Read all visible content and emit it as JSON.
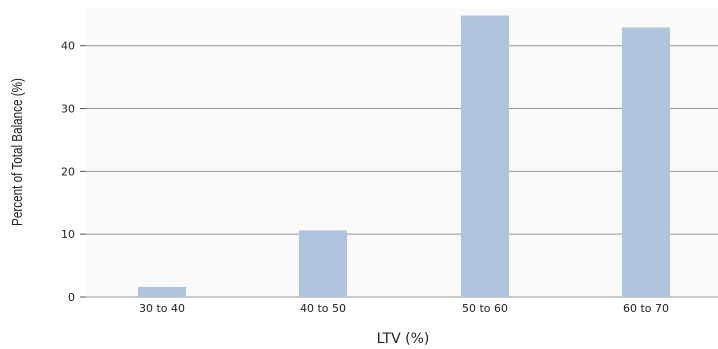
{
  "chart_data": {
    "type": "bar",
    "title": "",
    "xlabel": "LTV (%)",
    "ylabel": "Percent of Total Balance (%)",
    "categories": [
      "30 to 40",
      "40 to 50",
      "50 to 60",
      "60 to 70"
    ],
    "values": [
      1.6,
      10.6,
      44.8,
      42.9
    ],
    "ylim": [
      0,
      46
    ],
    "yticks": [
      0,
      10,
      20,
      30,
      40
    ],
    "grid": true,
    "bar_color": "#b0c4de",
    "grid_color": "#999999",
    "background_color": "#fafafa"
  }
}
